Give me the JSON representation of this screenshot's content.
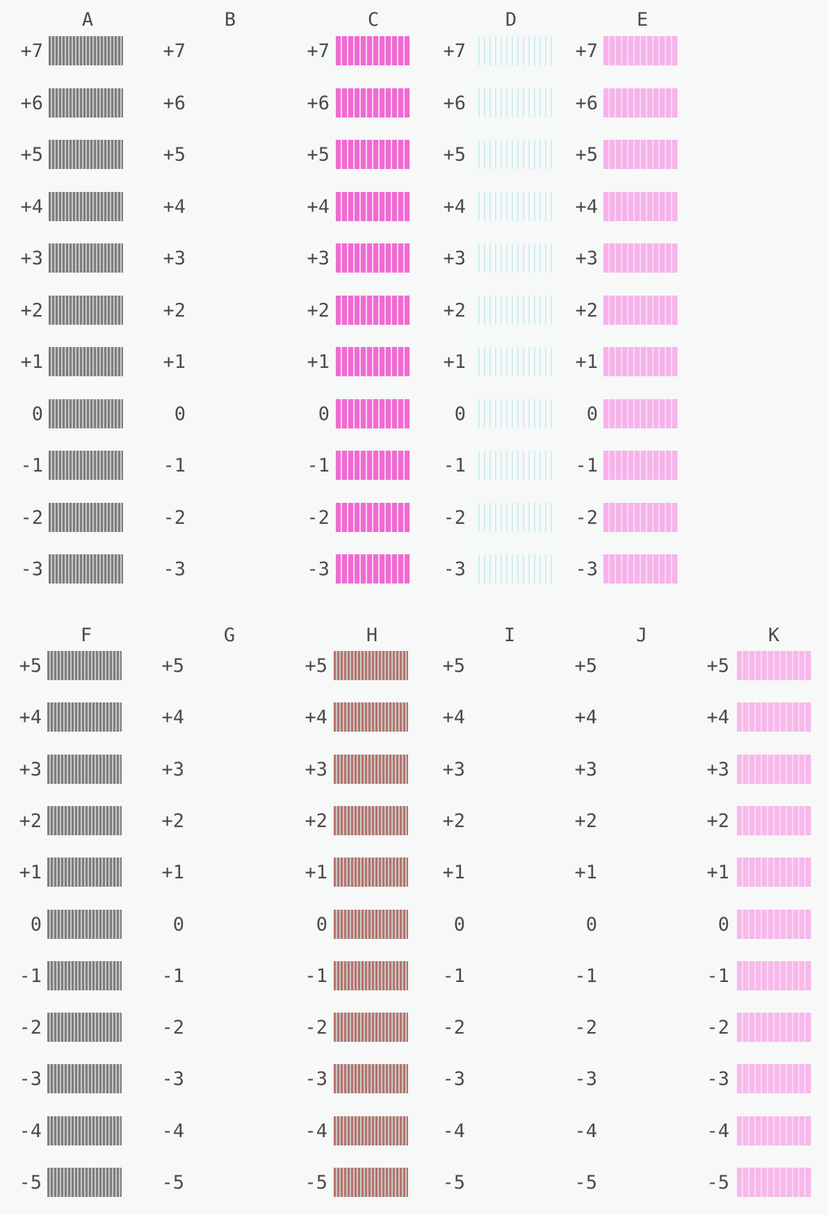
{
  "colors": {
    "A": "#7d7d7d",
    "B": null,
    "C": "#f06ad2",
    "D": "#cfeff2",
    "E": "#f6b3ea",
    "F": "#7d7d7d",
    "G": null,
    "H": "#b5736b",
    "I": null,
    "J": null,
    "K": "#f7b8ea"
  },
  "stripe_pattern": {
    "A": "fine-vertical-dark",
    "C": "vertical-magenta",
    "D": "dotted-faint-cyan",
    "E": "vertical-light-magenta",
    "F": "fine-vertical-dark",
    "H": "vertical-brown",
    "K": "vertical-light-magenta"
  },
  "section1": {
    "values": [
      "+7",
      "+6",
      "+5",
      "+4",
      "+3",
      "+2",
      "+1",
      "0",
      "-1",
      "-2",
      "-3"
    ],
    "columns": [
      {
        "name": "A",
        "has_patches": true
      },
      {
        "name": "B",
        "has_patches": false
      },
      {
        "name": "C",
        "has_patches": true
      },
      {
        "name": "D",
        "has_patches": true
      },
      {
        "name": "E",
        "has_patches": true
      }
    ]
  },
  "section2": {
    "values": [
      "+5",
      "+4",
      "+3",
      "+2",
      "+1",
      "0",
      "-1",
      "-2",
      "-3",
      "-4",
      "-5"
    ],
    "columns": [
      {
        "name": "F",
        "has_patches": true
      },
      {
        "name": "G",
        "has_patches": false
      },
      {
        "name": "H",
        "has_patches": true
      },
      {
        "name": "I",
        "has_patches": false
      },
      {
        "name": "J",
        "has_patches": false
      },
      {
        "name": "K",
        "has_patches": true
      }
    ]
  }
}
